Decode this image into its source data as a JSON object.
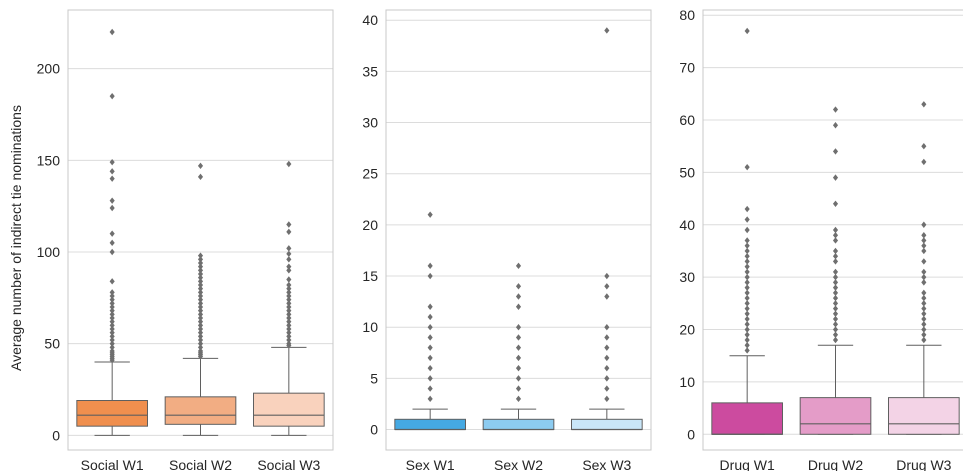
{
  "ylabel": "Average number of indirect tie nominations",
  "chart_data": [
    {
      "type": "box",
      "title": "",
      "ylim": [
        -8,
        232
      ],
      "yticks": [
        0,
        50,
        100,
        150,
        200
      ],
      "grid": true,
      "categories": [
        "Social W1",
        "Social W2",
        "Social W3"
      ],
      "colors": [
        "#f08f4e",
        "#f2ad83",
        "#f9d2bd"
      ],
      "boxes": [
        {
          "q1": 5,
          "median": 11,
          "q3": 19,
          "whisker_low": 0,
          "whisker_high": 40,
          "fliers": [
            220,
            185,
            149,
            144,
            140,
            128,
            124,
            110,
            105,
            100,
            84,
            78,
            76,
            74,
            72,
            70,
            68,
            66,
            64,
            62,
            60,
            58,
            56,
            54,
            52,
            50,
            48,
            46,
            45,
            44,
            43,
            42,
            41
          ]
        },
        {
          "q1": 6,
          "median": 11,
          "q3": 21,
          "whisker_low": 0,
          "whisker_high": 42,
          "fliers": [
            147,
            141,
            98,
            96,
            94,
            92,
            90,
            88,
            86,
            84,
            82,
            80,
            78,
            76,
            74,
            72,
            70,
            68,
            66,
            64,
            62,
            60,
            58,
            56,
            54,
            52,
            50,
            48,
            46,
            45,
            44,
            43
          ]
        },
        {
          "q1": 5,
          "median": 11,
          "q3": 23,
          "whisker_low": 0,
          "whisker_high": 48,
          "fliers": [
            148,
            115,
            111,
            102,
            99,
            96,
            92,
            90,
            85,
            82,
            80,
            78,
            76,
            74,
            72,
            70,
            68,
            66,
            64,
            62,
            60,
            58,
            56,
            54,
            52,
            50,
            49
          ]
        }
      ]
    },
    {
      "type": "box",
      "title": "",
      "ylim": [
        -2,
        41
      ],
      "yticks": [
        0,
        5,
        10,
        15,
        20,
        25,
        30,
        35,
        40
      ],
      "grid": true,
      "categories": [
        "Sex W1",
        "Sex W2",
        "Sex W3"
      ],
      "colors": [
        "#45a9e3",
        "#8ccbf0",
        "#c9e6f8"
      ],
      "boxes": [
        {
          "q1": 0,
          "median": 0,
          "q3": 1,
          "whisker_low": 0,
          "whisker_high": 2,
          "fliers": [
            21,
            16,
            15,
            12,
            11,
            10,
            9,
            8,
            7,
            6,
            5,
            4,
            3
          ]
        },
        {
          "q1": 0,
          "median": 0,
          "q3": 1,
          "whisker_low": 0,
          "whisker_high": 2,
          "fliers": [
            16,
            14,
            13,
            12,
            10,
            9,
            8,
            7,
            6,
            5,
            4,
            3
          ]
        },
        {
          "q1": 0,
          "median": 0,
          "q3": 1,
          "whisker_low": 0,
          "whisker_high": 2,
          "fliers": [
            39,
            15,
            14,
            13,
            10,
            9,
            8,
            7,
            6,
            5,
            4,
            3
          ]
        }
      ]
    },
    {
      "type": "box",
      "title": "",
      "ylim": [
        -3,
        81
      ],
      "yticks": [
        0,
        10,
        20,
        30,
        40,
        50,
        60,
        70,
        80
      ],
      "grid": true,
      "categories": [
        "Drug W1",
        "Drug W2",
        "Drug W3"
      ],
      "colors": [
        "#cc4b9f",
        "#e49cc8",
        "#f3d3e6"
      ],
      "boxes": [
        {
          "q1": 0,
          "median": 0,
          "q3": 6,
          "whisker_low": 0,
          "whisker_high": 15,
          "fliers": [
            77,
            51,
            43,
            41,
            39,
            37,
            36,
            35,
            34,
            33,
            32,
            31,
            30,
            29,
            28,
            27,
            26,
            25,
            24,
            23,
            22,
            21,
            20,
            19,
            18,
            17,
            16
          ]
        },
        {
          "q1": 0,
          "median": 2,
          "q3": 7,
          "whisker_low": 0,
          "whisker_high": 17,
          "fliers": [
            62,
            59,
            54,
            49,
            44,
            39,
            38,
            37,
            35,
            34,
            33,
            31,
            30,
            29,
            28,
            27,
            26,
            25,
            24,
            23,
            22,
            21,
            20,
            19,
            18
          ]
        },
        {
          "q1": 0,
          "median": 2,
          "q3": 7,
          "whisker_low": 0,
          "whisker_high": 17,
          "fliers": [
            63,
            55,
            52,
            40,
            38,
            37,
            36,
            35,
            33,
            31,
            30,
            29,
            27,
            26,
            25,
            24,
            23,
            22,
            21,
            20,
            19,
            18
          ]
        }
      ]
    }
  ]
}
